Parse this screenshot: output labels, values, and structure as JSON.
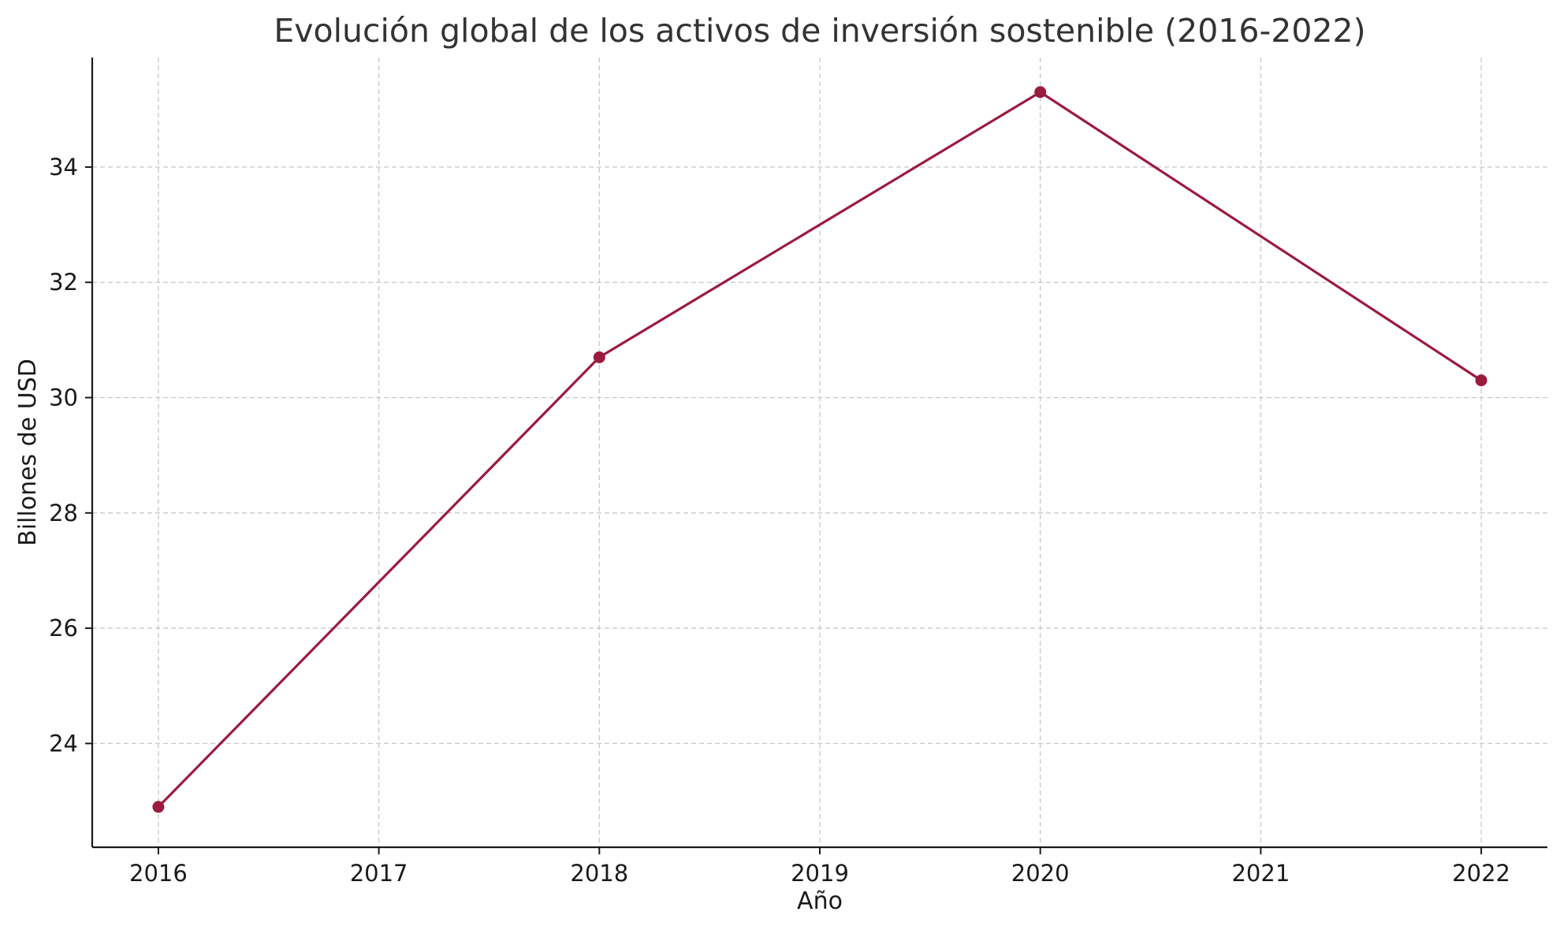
{
  "chart_data": {
    "type": "line",
    "title": "Evolución global de los activos de inversión sostenible (2016-2022)",
    "xlabel": "Año",
    "ylabel": "Billones de USD",
    "x": [
      2016,
      2018,
      2020,
      2022
    ],
    "series": [
      {
        "values": [
          22.9,
          30.7,
          35.3,
          30.3
        ],
        "color": "#9b1b3f"
      }
    ],
    "x_ticks": [
      2016,
      2017,
      2018,
      2019,
      2020,
      2021,
      2022
    ],
    "y_ticks": [
      24,
      26,
      28,
      30,
      32,
      34
    ],
    "xlim": [
      2015.7,
      2022.3
    ],
    "ylim": [
      22.2,
      35.9
    ],
    "grid": true,
    "marker": "circle"
  }
}
